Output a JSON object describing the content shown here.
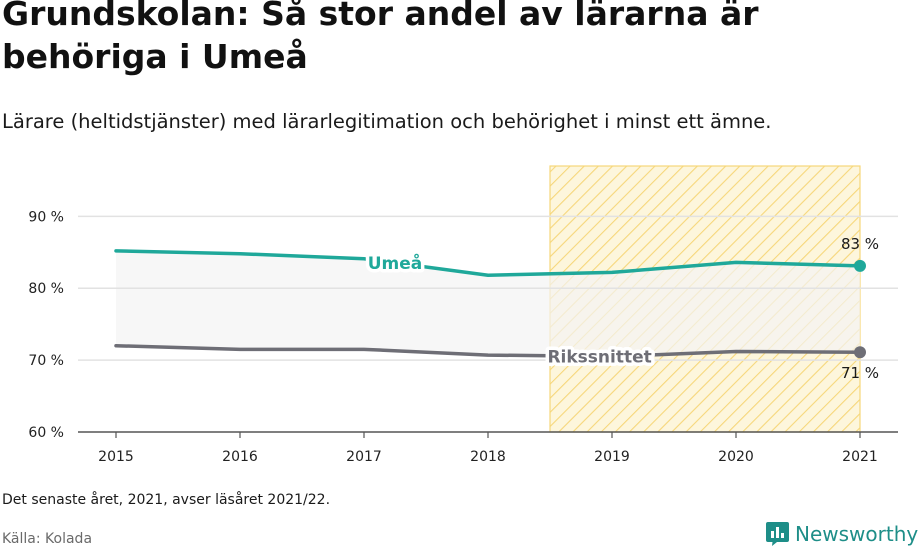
{
  "title": "Grundskolan: Så stor andel av lärarna är behöriga i Umeå",
  "subtitle": "Lärare (heltidstjänster) med lärarlegitimation och behörighet i minst ett ämne.",
  "footnote": "Det senaste året, 2021, avser läsåret 2021/22.",
  "source": "Källa: Kolada",
  "brand": "Newsworthy",
  "colors": {
    "umea": "#1fa89a",
    "riks": "#6e6e76",
    "highlight_fill": "#fdf6dc",
    "highlight_hatch": "#f6d77a",
    "band": "#f4f4f4"
  },
  "chart_data": {
    "type": "line",
    "x": [
      2015,
      2016,
      2017,
      2018,
      2019,
      2020,
      2021
    ],
    "x_tick_labels": [
      "2015",
      "2016",
      "2017",
      "2018",
      "2019",
      "2020",
      "2021"
    ],
    "y_ticks": [
      60,
      70,
      80,
      90
    ],
    "y_tick_labels": [
      "60 %",
      "70 %",
      "80 %",
      "90 %"
    ],
    "ylim": [
      60,
      97
    ],
    "xlabel": "",
    "ylabel": "",
    "grid": true,
    "highlight_range": [
      2018.5,
      2021
    ],
    "series": [
      {
        "name": "Umeå",
        "color_key": "umea",
        "values": [
          85.2,
          84.8,
          84.1,
          81.8,
          82.2,
          83.6,
          83.1
        ],
        "end_label": "83 %",
        "end_label_position": "above"
      },
      {
        "name": "Rikssnittet",
        "color_key": "riks",
        "values": [
          72.0,
          71.5,
          71.5,
          70.7,
          70.5,
          71.2,
          71.1
        ],
        "end_label": "71 %",
        "end_label_position": "below"
      }
    ]
  }
}
